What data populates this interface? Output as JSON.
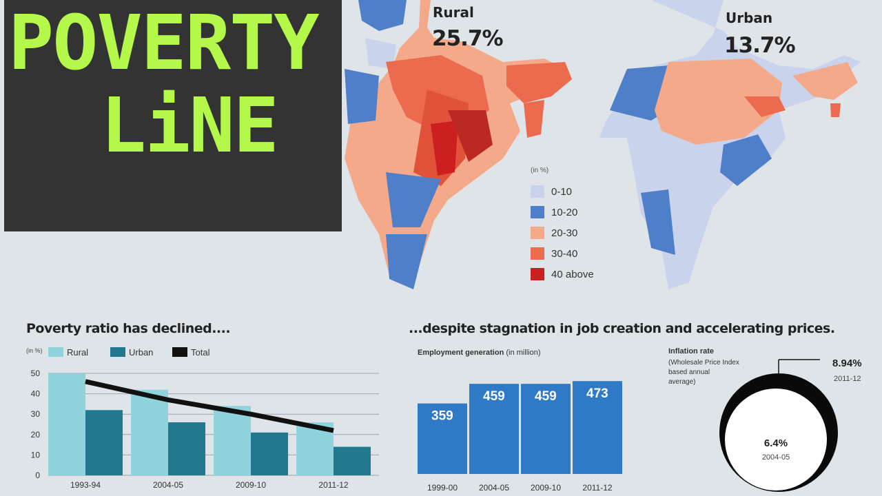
{
  "title": {
    "line1": "POVERTY",
    "line2": "LiNE"
  },
  "maps": {
    "rural": {
      "name": "Rural",
      "value": "25.7%"
    },
    "urban": {
      "name": "Urban",
      "value": "13.7%"
    },
    "legend_title": "(in %)",
    "legend": [
      {
        "label": "0-10",
        "color": "#c9d3ec"
      },
      {
        "label": "10-20",
        "color": "#4f7fc9"
      },
      {
        "label": "20-30",
        "color": "#f4a98a"
      },
      {
        "label": "30-40",
        "color": "#ec6a4d"
      },
      {
        "label": "40 above",
        "color": "#cc1f1f"
      }
    ]
  },
  "left_heading": "Poverty ratio has declined....",
  "right_heading": "...despite stagnation in job creation and accelerating prices.",
  "employment_title": "Employment generation",
  "employment_unit": "(in million)",
  "inflation_title": "Inflation rate",
  "inflation_sub": [
    "(Wholesale Price Index",
    "based annual",
    "average)"
  ],
  "chart_data": [
    {
      "type": "bar",
      "unit": "(in %)",
      "categories": [
        "1993-94",
        "2004-05",
        "2009-10",
        "2011-12"
      ],
      "series": [
        {
          "name": "Rural",
          "values": [
            50,
            42,
            34,
            26
          ],
          "color": "#8fd3dd"
        },
        {
          "name": "Urban",
          "values": [
            32,
            26,
            21,
            14
          ],
          "color": "#22788f"
        },
        {
          "name": "Total",
          "values": [
            46,
            37,
            30,
            22
          ],
          "color": "#111111"
        }
      ],
      "yticks": [
        0,
        10,
        20,
        30,
        40,
        50
      ],
      "ylim": [
        0,
        50
      ],
      "legend": "top",
      "grid": true
    },
    {
      "type": "bar",
      "categories": [
        "1999-00",
        "2004-05",
        "2009-10",
        "2011-12"
      ],
      "values": [
        359,
        459,
        459,
        473
      ],
      "color": "#2f7ac6"
    },
    {
      "type": "area",
      "points": [
        {
          "value": "6.4%",
          "period": "2004-05"
        },
        {
          "value": "8.94%",
          "period": "2011-12"
        }
      ]
    }
  ]
}
